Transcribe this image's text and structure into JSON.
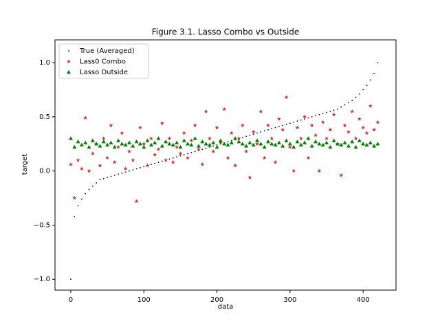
{
  "chart_data": {
    "type": "scatter",
    "title": "Figure 3.1. Lasso Combo vs Outside",
    "x_label": "data",
    "y_label": "target",
    "xlim": [
      -21.6,
      445
    ],
    "ylim": [
      -1.1,
      1.21
    ],
    "xticks": [
      0,
      100,
      200,
      300,
      400
    ],
    "yticks": [
      {
        "value": -1,
        "label": "−1.0"
      },
      {
        "value": -0.5,
        "label": "−0.5"
      },
      {
        "value": 0,
        "label": "0.0"
      },
      {
        "value": 0.5,
        "label": "0.5"
      },
      {
        "value": 1,
        "label": "1.0"
      }
    ],
    "legend": "upper left",
    "x": [
      0,
      5,
      10,
      15,
      20,
      25,
      30,
      35,
      40,
      45,
      50,
      55,
      60,
      65,
      70,
      75,
      80,
      85,
      90,
      95,
      100,
      105,
      110,
      115,
      120,
      125,
      130,
      135,
      140,
      145,
      150,
      155,
      160,
      165,
      170,
      175,
      180,
      185,
      190,
      195,
      200,
      205,
      210,
      215,
      220,
      225,
      230,
      235,
      240,
      245,
      250,
      255,
      260,
      265,
      270,
      275,
      280,
      285,
      290,
      295,
      300,
      305,
      310,
      315,
      320,
      325,
      330,
      335,
      340,
      345,
      350,
      355,
      360,
      365,
      370,
      375,
      380,
      385,
      390,
      395,
      400,
      405,
      410,
      415,
      420
    ],
    "series": [
      {
        "name": "True (Averaged)",
        "color": "#000000",
        "marker": "dot",
        "values": [
          -1.0,
          -0.42,
          -0.32,
          -0.26,
          -0.21,
          -0.17,
          -0.14,
          -0.11,
          -0.08,
          -0.07,
          -0.06,
          -0.05,
          -0.04,
          -0.03,
          -0.02,
          -0.01,
          0.0,
          0.01,
          0.02,
          0.03,
          0.04,
          0.05,
          0.06,
          0.07,
          0.08,
          0.09,
          0.1,
          0.11,
          0.12,
          0.13,
          0.14,
          0.15,
          0.16,
          0.17,
          0.18,
          0.19,
          0.2,
          0.21,
          0.22,
          0.23,
          0.24,
          0.25,
          0.26,
          0.27,
          0.28,
          0.29,
          0.3,
          0.31,
          0.32,
          0.33,
          0.34,
          0.35,
          0.36,
          0.37,
          0.38,
          0.39,
          0.4,
          0.41,
          0.42,
          0.43,
          0.44,
          0.45,
          0.46,
          0.47,
          0.48,
          0.49,
          0.5,
          0.51,
          0.52,
          0.53,
          0.54,
          0.55,
          0.56,
          0.57,
          0.59,
          0.61,
          0.63,
          0.65,
          0.68,
          0.71,
          0.75,
          0.79,
          0.84,
          0.9,
          1.0
        ]
      },
      {
        "name": "Lass0 Combo",
        "color": "#d62728",
        "marker": "star",
        "values": [
          0.06,
          -0.25,
          0.1,
          0.02,
          0.49,
          0.0,
          0.16,
          0.25,
          0.05,
          0.3,
          0.12,
          0.42,
          0.08,
          0.22,
          0.35,
          0.02,
          0.18,
          0.1,
          -0.28,
          0.4,
          0.25,
          0.05,
          0.3,
          0.15,
          0.2,
          0.44,
          0.1,
          0.3,
          0.08,
          0.22,
          0.16,
          0.35,
          0.12,
          0.28,
          0.42,
          0.2,
          0.06,
          0.55,
          0.3,
          0.18,
          0.4,
          0.26,
          0.57,
          0.12,
          0.35,
          0.05,
          0.3,
          0.42,
          0.18,
          -0.06,
          0.36,
          0.25,
          0.55,
          0.12,
          0.42,
          0.3,
          0.08,
          0.48,
          0.38,
          0.68,
          0.22,
          0.0,
          0.4,
          0.3,
          0.5,
          0.12,
          0.42,
          0.33,
          0.0,
          0.45,
          0.3,
          0.38,
          0.52,
          0.25,
          -0.04,
          0.42,
          0.36,
          0.55,
          0.3,
          0.48,
          0.4,
          0.35,
          0.6,
          0.38,
          0.45
        ]
      },
      {
        "name": "Lasso Outside",
        "color": "#008000",
        "marker": "triangle",
        "values": [
          0.3,
          0.22,
          0.27,
          0.24,
          0.26,
          0.22,
          0.28,
          0.25,
          0.23,
          0.27,
          0.24,
          0.26,
          0.22,
          0.28,
          0.25,
          0.24,
          0.26,
          0.23,
          0.27,
          0.25,
          0.22,
          0.28,
          0.24,
          0.26,
          0.3,
          0.23,
          0.27,
          0.25,
          0.24,
          0.26,
          0.22,
          0.28,
          0.25,
          0.24,
          0.3,
          0.23,
          0.27,
          0.25,
          0.24,
          0.26,
          0.22,
          0.28,
          0.25,
          0.24,
          0.26,
          0.3,
          0.27,
          0.25,
          0.23,
          0.26,
          0.24,
          0.28,
          0.25,
          0.22,
          0.27,
          0.25,
          0.24,
          0.26,
          0.23,
          0.28,
          0.25,
          0.22,
          0.27,
          0.24,
          0.26,
          0.3,
          0.23,
          0.27,
          0.25,
          0.24,
          0.26,
          0.22,
          0.28,
          0.25,
          0.24,
          0.26,
          0.23,
          0.27,
          0.22,
          0.28,
          0.25,
          0.24,
          0.26,
          0.23,
          0.25
        ]
      }
    ]
  }
}
